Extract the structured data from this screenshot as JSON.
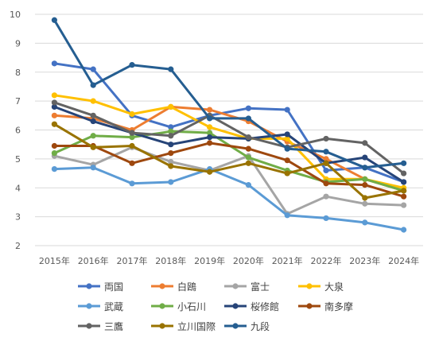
{
  "chart_data": {
    "type": "line",
    "title": "",
    "xlabel": "",
    "ylabel": "",
    "categories": [
      "2015年",
      "2016年",
      "2017年",
      "2018年",
      "2019年",
      "2020年",
      "2021年",
      "2022年",
      "2023年",
      "2024年"
    ],
    "ylim": [
      2,
      10
    ],
    "yticks": [
      "2",
      "3",
      "4",
      "5",
      "6",
      "7",
      "8",
      "9",
      "10"
    ],
    "grid": true,
    "legend": "bottom",
    "series": [
      {
        "name": "両国",
        "color": "#4472C4",
        "values": [
          8.3,
          8.1,
          6.5,
          6.1,
          6.5,
          6.75,
          6.7,
          4.6,
          4.7,
          4.2
        ]
      },
      {
        "name": "白鴎",
        "color": "#ED7D31",
        "values": [
          6.5,
          6.4,
          6.0,
          6.8,
          6.7,
          6.3,
          5.6,
          5.0,
          4.3,
          3.9
        ]
      },
      {
        "name": "富士",
        "color": "#A5A5A5",
        "values": [
          5.1,
          4.8,
          5.4,
          4.9,
          4.6,
          5.1,
          3.1,
          3.7,
          3.45,
          3.4
        ]
      },
      {
        "name": "大泉",
        "color": "#FFC000",
        "values": [
          7.2,
          7.0,
          6.55,
          6.8,
          6.1,
          5.7,
          5.7,
          4.3,
          4.3,
          4.0
        ]
      },
      {
        "name": "武蔵",
        "color": "#5B9BD5",
        "values": [
          4.65,
          4.7,
          4.15,
          4.2,
          4.65,
          4.1,
          3.05,
          2.95,
          2.8,
          2.55
        ]
      },
      {
        "name": "小石川",
        "color": "#70AD47",
        "values": [
          5.2,
          5.8,
          5.75,
          5.95,
          5.9,
          5.05,
          4.6,
          4.2,
          4.3,
          3.9
        ]
      },
      {
        "name": "桜修館",
        "color": "#264478",
        "values": [
          6.8,
          6.3,
          5.9,
          5.5,
          5.75,
          5.7,
          5.85,
          4.85,
          5.05,
          4.2
        ]
      },
      {
        "name": "南多摩",
        "color": "#9E480E",
        "values": [
          5.45,
          5.45,
          4.85,
          5.2,
          5.55,
          5.35,
          4.95,
          4.15,
          4.1,
          3.7
        ]
      },
      {
        "name": "三鷹",
        "color": "#636363",
        "values": [
          6.95,
          6.5,
          5.9,
          5.8,
          6.5,
          5.75,
          5.4,
          5.7,
          5.55,
          4.5
        ]
      },
      {
        "name": "立川国際",
        "color": "#997300",
        "values": [
          6.2,
          5.4,
          5.45,
          4.75,
          4.55,
          4.85,
          4.5,
          4.85,
          3.65,
          3.9
        ]
      },
      {
        "name": "九段",
        "color": "#255E91",
        "values": [
          9.8,
          7.55,
          8.25,
          8.1,
          6.4,
          6.4,
          5.35,
          5.25,
          4.7,
          4.85
        ]
      }
    ]
  }
}
